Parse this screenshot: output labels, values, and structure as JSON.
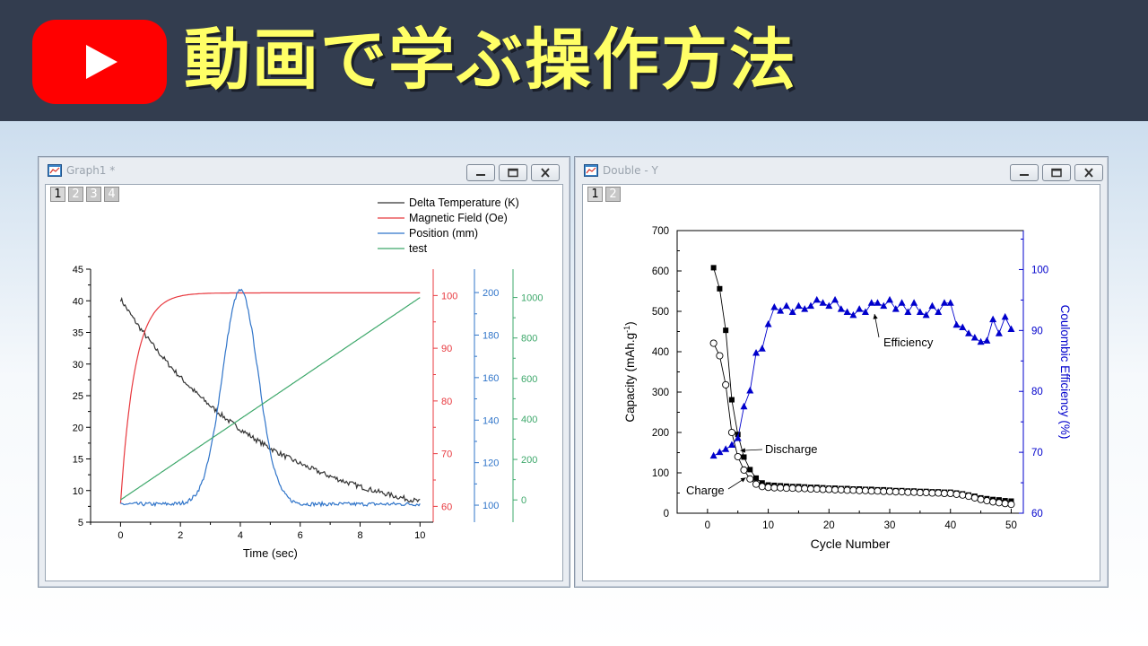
{
  "banner": {
    "title": "動画で学ぶ操作方法",
    "logo_icon": "youtube-play-icon",
    "title_color": "#ffff66",
    "background": "#333d4f"
  },
  "window_left": {
    "title": "Graph1 *",
    "layer_tabs": [
      "1",
      "2",
      "3",
      "4"
    ],
    "active_tab": "1"
  },
  "window_right": {
    "title": "Double - Y",
    "layer_tabs": [
      "1",
      "2"
    ],
    "active_tab": "1"
  },
  "chart_data": [
    {
      "type": "line",
      "xlabel": "Time (sec)",
      "xlim": [
        -1,
        10.5
      ],
      "x_ticks": [
        "0",
        "2",
        "4",
        "6",
        "8",
        "10"
      ],
      "legend": [
        "Delta Temperature (K)",
        "Magnetic Field (Oe)",
        "Position (mm)",
        "test"
      ],
      "legend_position": "top-right",
      "axes": [
        {
          "side": "left",
          "ylim": [
            5,
            45
          ],
          "ticks": [
            "5",
            "10",
            "15",
            "20",
            "25",
            "30",
            "35",
            "40",
            "45"
          ],
          "color": "#000000"
        },
        {
          "side": "right-1",
          "ylim": [
            57,
            105
          ],
          "ticks": [
            "60",
            "70",
            "80",
            "90",
            "100"
          ],
          "color": "#e8393f"
        },
        {
          "side": "right-2",
          "ylim": [
            92,
            211
          ],
          "ticks": [
            "100",
            "120",
            "140",
            "160",
            "180",
            "200"
          ],
          "color": "#2f74c9"
        },
        {
          "side": "right-3",
          "ylim": [
            -110,
            1140
          ],
          "ticks": [
            "0",
            "200",
            "400",
            "600",
            "800",
            "1000"
          ],
          "color": "#3ea86b"
        }
      ],
      "series": [
        {
          "name": "Delta Temperature (K)",
          "axis": 0,
          "color": "#333333",
          "model": "exp_decay",
          "x": [
            0,
            2,
            4,
            6,
            8,
            10
          ],
          "values": [
            40.3,
            27.5,
            19.3,
            12.8,
            9.0,
            6.2
          ]
        },
        {
          "name": "Magnetic Field (Oe)",
          "axis": 1,
          "color": "#e8393f",
          "model": "saturation",
          "x": [
            0,
            0.5,
            1,
            2,
            3,
            10
          ],
          "values": [
            60.5,
            85,
            94,
            99.5,
            100.5,
            100.5
          ]
        },
        {
          "name": "Position (mm)",
          "axis": 2,
          "color": "#2f74c9",
          "model": "gaussian",
          "x": [
            0,
            3,
            3.5,
            4,
            4.5,
            5,
            10
          ],
          "values": [
            100.5,
            107,
            160,
            201,
            160,
            107,
            100.5
          ]
        },
        {
          "name": "test",
          "axis": 3,
          "color": "#3ea86b",
          "model": "linear",
          "x": [
            0,
            10
          ],
          "values": [
            0,
            1000
          ]
        }
      ]
    },
    {
      "type": "scatter",
      "xlabel": "Cycle Number",
      "xlim": [
        -5,
        52
      ],
      "x_ticks": [
        "0",
        "10",
        "20",
        "30",
        "40",
        "50"
      ],
      "y_left": {
        "label": "Capacity (mAh.g",
        "sup": "-1",
        "label_close": ")",
        "ylim": [
          0,
          700
        ],
        "ticks": [
          "0",
          "100",
          "200",
          "300",
          "400",
          "500",
          "600",
          "700"
        ],
        "color": "#000000"
      },
      "y_right": {
        "label": "Coulombic Efficiency (%)",
        "ylim": [
          60,
          106.4
        ],
        "ticks": [
          "60",
          "70",
          "80",
          "90",
          "100"
        ],
        "color": "#0000cc"
      },
      "annotations": [
        "Efficiency",
        "Discharge",
        "Charge"
      ],
      "series": [
        {
          "name": "Discharge",
          "axis": "left",
          "marker": "filled-square",
          "color": "#000000",
          "x": [
            1,
            2,
            3,
            4,
            5,
            6,
            7,
            8,
            9,
            10,
            11,
            12,
            13,
            14,
            15,
            16,
            17,
            18,
            19,
            20,
            21,
            22,
            23,
            24,
            25,
            26,
            27,
            28,
            29,
            30,
            31,
            32,
            33,
            34,
            35,
            36,
            37,
            38,
            39,
            40,
            41,
            42,
            43,
            44,
            45,
            46,
            47,
            48,
            49,
            50
          ],
          "values": [
            608,
            556,
            453,
            281,
            195,
            139,
            108,
            87,
            75,
            70,
            69,
            68,
            67,
            66,
            66,
            65,
            64,
            64,
            63,
            62,
            62,
            61,
            61,
            60,
            60,
            59,
            59,
            58,
            58,
            57,
            56,
            56,
            55,
            55,
            54,
            54,
            53,
            53,
            52,
            52,
            50,
            48,
            45,
            42,
            38,
            36,
            34,
            33,
            31,
            30
          ]
        },
        {
          "name": "Charge",
          "axis": "left",
          "marker": "open-circle",
          "color": "#000000",
          "x": [
            1,
            2,
            3,
            4,
            5,
            6,
            7,
            8,
            9,
            10,
            11,
            12,
            13,
            14,
            15,
            16,
            17,
            18,
            19,
            20,
            21,
            22,
            23,
            24,
            25,
            26,
            27,
            28,
            29,
            30,
            31,
            32,
            33,
            34,
            35,
            36,
            37,
            38,
            39,
            40,
            41,
            42,
            43,
            44,
            45,
            46,
            47,
            48,
            49,
            50
          ],
          "values": [
            421,
            390,
            318,
            200,
            140,
            107,
            85,
            72,
            66,
            64,
            63,
            63,
            62,
            62,
            61,
            61,
            60,
            60,
            59,
            59,
            58,
            58,
            57,
            57,
            56,
            56,
            55,
            55,
            54,
            54,
            53,
            53,
            52,
            52,
            51,
            51,
            50,
            50,
            49,
            49,
            47,
            45,
            42,
            38,
            34,
            31,
            28,
            26,
            24,
            22
          ]
        },
        {
          "name": "Efficiency",
          "axis": "right",
          "marker": "filled-triangle",
          "color": "#0000cc",
          "x": [
            1,
            2,
            3,
            4,
            5,
            6,
            7,
            8,
            9,
            10,
            11,
            12,
            13,
            14,
            15,
            16,
            17,
            18,
            19,
            20,
            21,
            22,
            23,
            24,
            25,
            26,
            27,
            28,
            29,
            30,
            31,
            32,
            33,
            34,
            35,
            36,
            37,
            38,
            39,
            40,
            41,
            42,
            43,
            44,
            45,
            46,
            47,
            48,
            49,
            50
          ],
          "values": [
            69.4,
            70.0,
            70.5,
            71.2,
            72.3,
            77.5,
            80.1,
            86.3,
            87.0,
            91.0,
            93.8,
            93.2,
            94.0,
            93.0,
            94.0,
            93.5,
            94.0,
            95.0,
            94.5,
            94.0,
            95.0,
            93.5,
            93.0,
            92.5,
            93.5,
            93.0,
            94.5,
            94.5,
            94.0,
            95.0,
            93.5,
            94.5,
            93.0,
            94.5,
            93.0,
            92.5,
            94.0,
            93.0,
            94.5,
            94.5,
            90.9,
            90.5,
            89.5,
            88.8,
            88.1,
            88.3,
            91.8,
            89.5,
            92.2,
            90.2
          ]
        }
      ]
    }
  ]
}
